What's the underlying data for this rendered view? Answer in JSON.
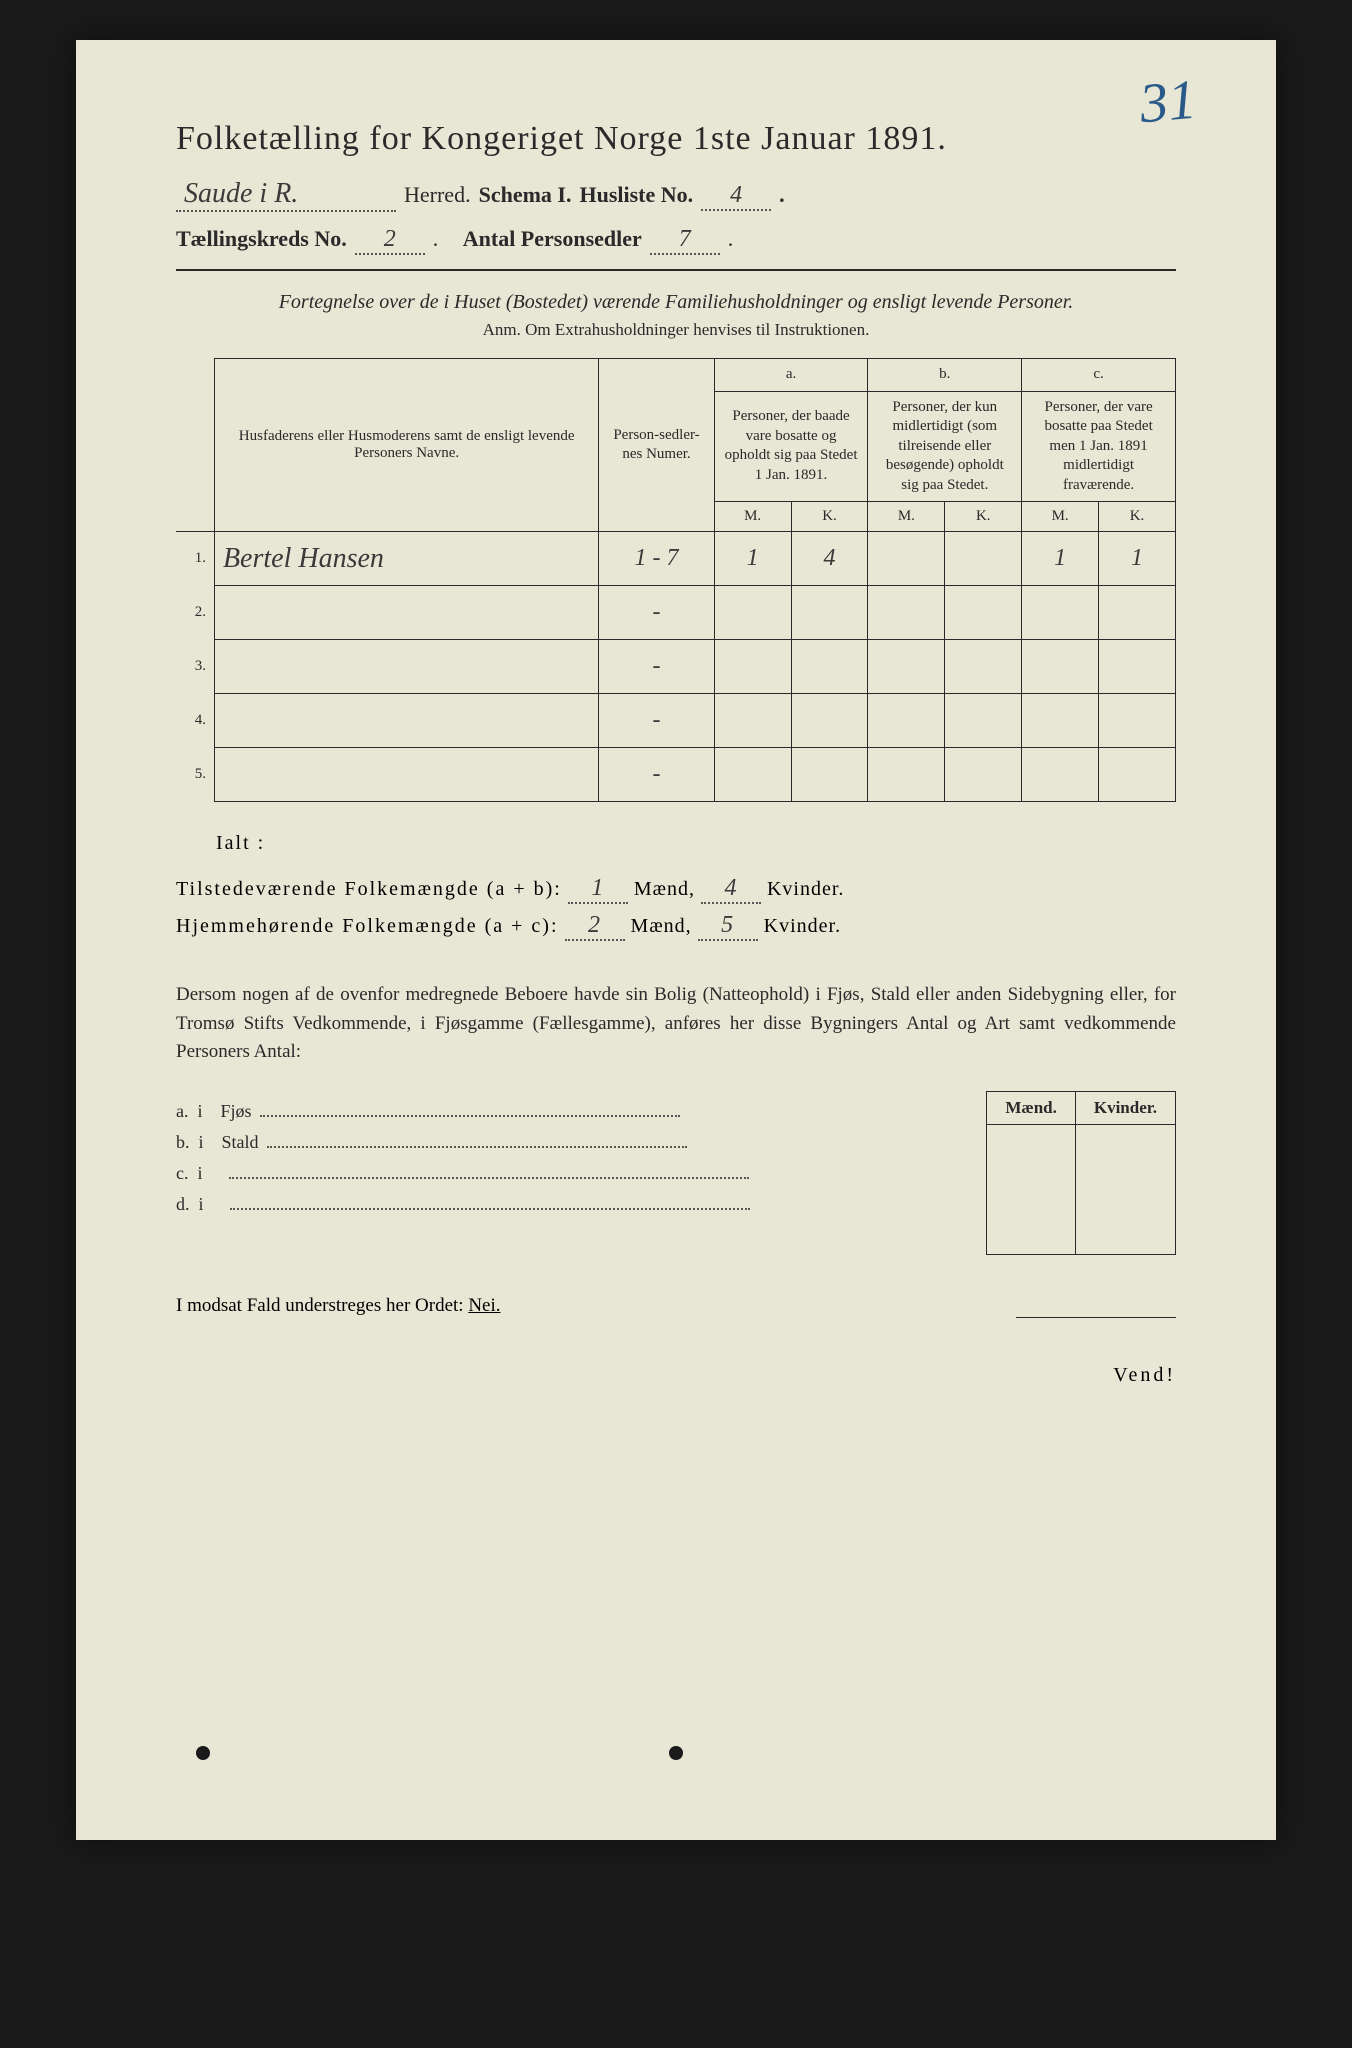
{
  "corner_number": "31",
  "title": "Folketælling for Kongeriget Norge 1ste Januar 1891.",
  "header": {
    "herred_value": "Saude i R.",
    "herred_label": "Herred.",
    "schema_label": "Schema I.",
    "husliste_label": "Husliste No.",
    "husliste_value": "4",
    "kreds_label": "Tællingskreds No.",
    "kreds_value": "2",
    "personsedler_label": "Antal Personsedler",
    "personsedler_value": "7"
  },
  "subtitle": "Fortegnelse over de i Huset (Bostedet) værende Familiehusholdninger og ensligt levende Personer.",
  "anm": "Anm.  Om Extrahusholdninger henvises til Instruktionen.",
  "table": {
    "head_name": "Husfaderens eller Husmoderens samt de ensligt levende Personers Navne.",
    "head_num": "Person-sedler-nes Numer.",
    "col_a_top": "a.",
    "col_a": "Personer, der baade vare bosatte og opholdt sig paa Stedet 1 Jan. 1891.",
    "col_b_top": "b.",
    "col_b": "Personer, der kun midlertidigt (som tilreisende eller besøgende) opholdt sig paa Stedet.",
    "col_c_top": "c.",
    "col_c": "Personer, der vare bosatte paa Stedet men 1 Jan. 1891 midlertidigt fraværende.",
    "m": "M.",
    "k": "K.",
    "rows": [
      {
        "n": "1.",
        "name": "Bertel Hansen",
        "num": "1 - 7",
        "a_m": "1",
        "a_k": "4",
        "b_m": "",
        "b_k": "",
        "c_m": "1",
        "c_k": "1"
      },
      {
        "n": "2.",
        "name": "",
        "num": "-",
        "a_m": "",
        "a_k": "",
        "b_m": "",
        "b_k": "",
        "c_m": "",
        "c_k": ""
      },
      {
        "n": "3.",
        "name": "",
        "num": "-",
        "a_m": "",
        "a_k": "",
        "b_m": "",
        "b_k": "",
        "c_m": "",
        "c_k": ""
      },
      {
        "n": "4.",
        "name": "",
        "num": "-",
        "a_m": "",
        "a_k": "",
        "b_m": "",
        "b_k": "",
        "c_m": "",
        "c_k": ""
      },
      {
        "n": "5.",
        "name": "",
        "num": "-",
        "a_m": "",
        "a_k": "",
        "b_m": "",
        "b_k": "",
        "c_m": "",
        "c_k": ""
      }
    ]
  },
  "ialt": "Ialt :",
  "sums": {
    "tilstede_label": "Tilstedeværende Folkemængde (a + b):",
    "tilstede_m": "1",
    "tilstede_k": "4",
    "hjemme_label": "Hjemmehørende Folkemængde (a + c):",
    "hjemme_m": "2",
    "hjemme_k": "5",
    "maend": "Mænd,",
    "kvinder": "Kvinder."
  },
  "para": "Dersom nogen af de ovenfor medregnede Beboere havde sin Bolig (Natteophold) i Fjøs, Stald eller anden Sidebygning eller, for Tromsø Stifts Vedkommende, i Fjøsgamme (Fællesgamme), anføres her disse Bygningers Antal og Art samt vedkommende Personers Antal:",
  "buildings": {
    "mk_m": "Mænd.",
    "mk_k": "Kvinder.",
    "rows": [
      {
        "l": "a.",
        "i": "i",
        "t": "Fjøs"
      },
      {
        "l": "b.",
        "i": "i",
        "t": "Stald"
      },
      {
        "l": "c.",
        "i": "i",
        "t": ""
      },
      {
        "l": "d.",
        "i": "i",
        "t": ""
      }
    ]
  },
  "nei_line_pre": "I modsat Fald understreges her Ordet: ",
  "nei": "Nei.",
  "vend": "Vend!",
  "colors": {
    "paper": "#e8e6d4",
    "ink": "#2a2a2a",
    "pencil_blue": "#2a5a8a",
    "background": "#1a1a1a"
  }
}
